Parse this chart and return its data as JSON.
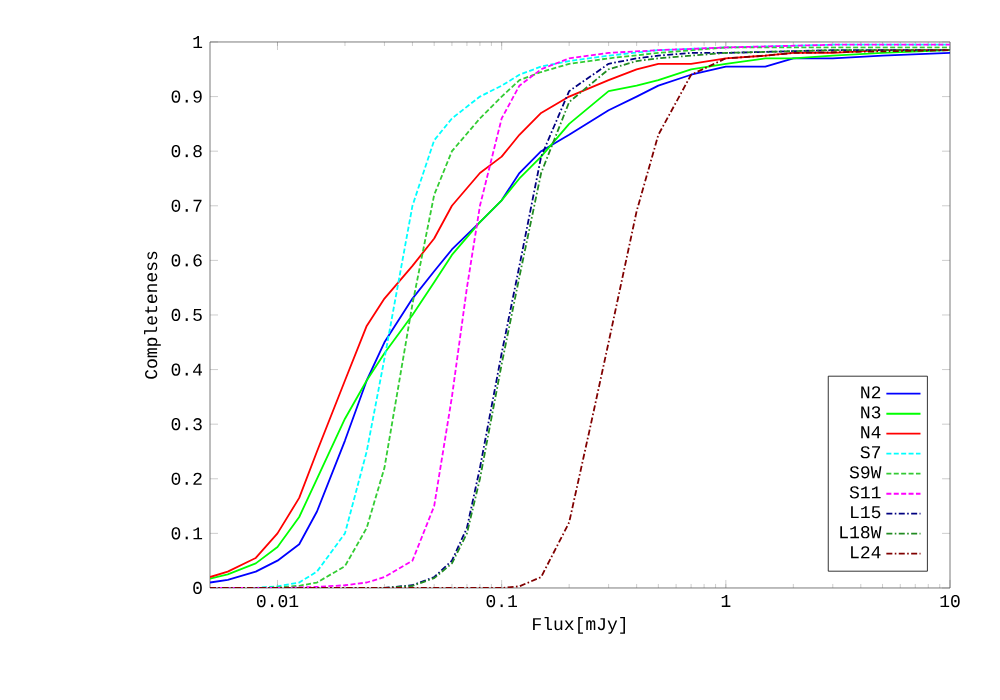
{
  "chart_data": {
    "type": "line",
    "xlabel": "Flux[mJy]",
    "ylabel": "Completeness",
    "log": "x",
    "xlim": [
      0.005,
      10
    ],
    "ylim": [
      0,
      1
    ],
    "xticks": [
      {
        "value": 0.01,
        "label": "0.01"
      },
      {
        "value": 0.1,
        "label": "0.1"
      },
      1,
      10
    ],
    "yticks": [
      0,
      0.1,
      0.2,
      0.3,
      0.4,
      0.5,
      0.6,
      0.7,
      0.8,
      0.9,
      1
    ],
    "legend": "bottom right",
    "grid": false,
    "series": [
      {
        "name": "N2",
        "color": "#0000ff",
        "line_style": "solid",
        "x": [
          0.005,
          0.006,
          0.008,
          0.01,
          0.0125,
          0.015,
          0.02,
          0.025,
          0.03,
          0.04,
          0.05,
          0.06,
          0.08,
          0.1,
          0.12,
          0.15,
          0.2,
          0.3,
          0.4,
          0.5,
          0.7,
          1,
          1.5,
          2,
          3,
          5,
          10
        ],
        "values": [
          0.01,
          0.015,
          0.03,
          0.05,
          0.08,
          0.14,
          0.27,
          0.38,
          0.45,
          0.53,
          0.58,
          0.62,
          0.67,
          0.71,
          0.76,
          0.8,
          0.83,
          0.875,
          0.9,
          0.92,
          0.94,
          0.955,
          0.955,
          0.97,
          0.97,
          0.975,
          0.98
        ]
      },
      {
        "name": "N3",
        "color": "#00ff00",
        "line_style": "solid",
        "x": [
          0.005,
          0.006,
          0.008,
          0.01,
          0.0125,
          0.015,
          0.02,
          0.025,
          0.03,
          0.04,
          0.05,
          0.06,
          0.08,
          0.1,
          0.12,
          0.15,
          0.2,
          0.3,
          0.4,
          0.5,
          0.7,
          1,
          1.5,
          2,
          3,
          5,
          10
        ],
        "values": [
          0.017,
          0.025,
          0.045,
          0.075,
          0.13,
          0.2,
          0.31,
          0.38,
          0.43,
          0.5,
          0.56,
          0.61,
          0.67,
          0.71,
          0.75,
          0.79,
          0.85,
          0.91,
          0.92,
          0.93,
          0.95,
          0.96,
          0.97,
          0.97,
          0.975,
          0.98,
          0.985
        ]
      },
      {
        "name": "N4",
        "color": "#ff0000",
        "line_style": "solid",
        "x": [
          0.005,
          0.006,
          0.008,
          0.01,
          0.0125,
          0.015,
          0.02,
          0.025,
          0.03,
          0.04,
          0.05,
          0.06,
          0.08,
          0.1,
          0.12,
          0.15,
          0.2,
          0.3,
          0.4,
          0.5,
          0.7,
          1,
          1.5,
          2,
          3,
          5,
          10
        ],
        "values": [
          0.02,
          0.03,
          0.055,
          0.1,
          0.165,
          0.25,
          0.38,
          0.48,
          0.53,
          0.59,
          0.64,
          0.7,
          0.76,
          0.79,
          0.83,
          0.87,
          0.9,
          0.93,
          0.95,
          0.96,
          0.96,
          0.97,
          0.975,
          0.98,
          0.98,
          0.985,
          0.985
        ]
      },
      {
        "name": "S7",
        "color": "#00ffff",
        "line_style": "dashed",
        "x": [
          0.005,
          0.008,
          0.01,
          0.0125,
          0.015,
          0.02,
          0.025,
          0.03,
          0.04,
          0.05,
          0.06,
          0.08,
          0.1,
          0.12,
          0.15,
          0.2,
          0.3,
          0.5,
          1,
          3,
          10
        ],
        "values": [
          0,
          0,
          0.003,
          0.01,
          0.03,
          0.1,
          0.25,
          0.42,
          0.7,
          0.82,
          0.86,
          0.9,
          0.92,
          0.94,
          0.955,
          0.965,
          0.975,
          0.985,
          0.99,
          0.995,
          0.995
        ]
      },
      {
        "name": "S9W",
        "color": "#33cc33",
        "line_style": "dashed",
        "x": [
          0.005,
          0.008,
          0.01,
          0.0125,
          0.015,
          0.02,
          0.025,
          0.03,
          0.04,
          0.05,
          0.06,
          0.08,
          0.1,
          0.12,
          0.15,
          0.2,
          0.3,
          0.5,
          1,
          3,
          10
        ],
        "values": [
          0,
          0,
          0.001,
          0.004,
          0.01,
          0.04,
          0.11,
          0.22,
          0.52,
          0.72,
          0.8,
          0.86,
          0.9,
          0.93,
          0.945,
          0.96,
          0.97,
          0.98,
          0.99,
          0.99,
          0.99
        ]
      },
      {
        "name": "S11",
        "color": "#ff00ff",
        "line_style": "dashed",
        "x": [
          0.005,
          0.01,
          0.015,
          0.02,
          0.025,
          0.03,
          0.04,
          0.05,
          0.06,
          0.07,
          0.08,
          0.1,
          0.12,
          0.15,
          0.2,
          0.3,
          0.5,
          1,
          3,
          10
        ],
        "values": [
          0,
          0,
          0.002,
          0.005,
          0.01,
          0.02,
          0.05,
          0.15,
          0.35,
          0.55,
          0.7,
          0.86,
          0.92,
          0.95,
          0.97,
          0.98,
          0.985,
          0.99,
          0.995,
          0.995
        ]
      },
      {
        "name": "L15",
        "color": "#000080",
        "line_style": "dashdot",
        "x": [
          0.005,
          0.02,
          0.03,
          0.04,
          0.05,
          0.06,
          0.07,
          0.08,
          0.1,
          0.12,
          0.15,
          0.2,
          0.3,
          0.4,
          0.5,
          0.7,
          1,
          3,
          10
        ],
        "values": [
          0,
          0,
          0,
          0.005,
          0.02,
          0.05,
          0.11,
          0.22,
          0.43,
          0.59,
          0.79,
          0.91,
          0.96,
          0.97,
          0.975,
          0.98,
          0.98,
          0.985,
          0.985
        ]
      },
      {
        "name": "L18W",
        "color": "#228b22",
        "line_style": "dashdot",
        "x": [
          0.005,
          0.02,
          0.03,
          0.04,
          0.05,
          0.06,
          0.07,
          0.08,
          0.1,
          0.12,
          0.15,
          0.2,
          0.3,
          0.4,
          0.5,
          0.7,
          1,
          3,
          10
        ],
        "values": [
          0,
          0,
          0,
          0.004,
          0.018,
          0.045,
          0.1,
          0.2,
          0.41,
          0.57,
          0.76,
          0.89,
          0.95,
          0.965,
          0.97,
          0.975,
          0.98,
          0.985,
          0.985
        ]
      },
      {
        "name": "L24",
        "color": "#800000",
        "line_style": "dashdot",
        "x": [
          0.005,
          0.05,
          0.1,
          0.12,
          0.15,
          0.2,
          0.25,
          0.3,
          0.4,
          0.5,
          0.7,
          1,
          1.5,
          2,
          10
        ],
        "values": [
          0,
          0,
          0,
          0.003,
          0.02,
          0.12,
          0.3,
          0.45,
          0.69,
          0.83,
          0.94,
          0.97,
          0.975,
          0.98,
          0.985
        ]
      }
    ]
  }
}
